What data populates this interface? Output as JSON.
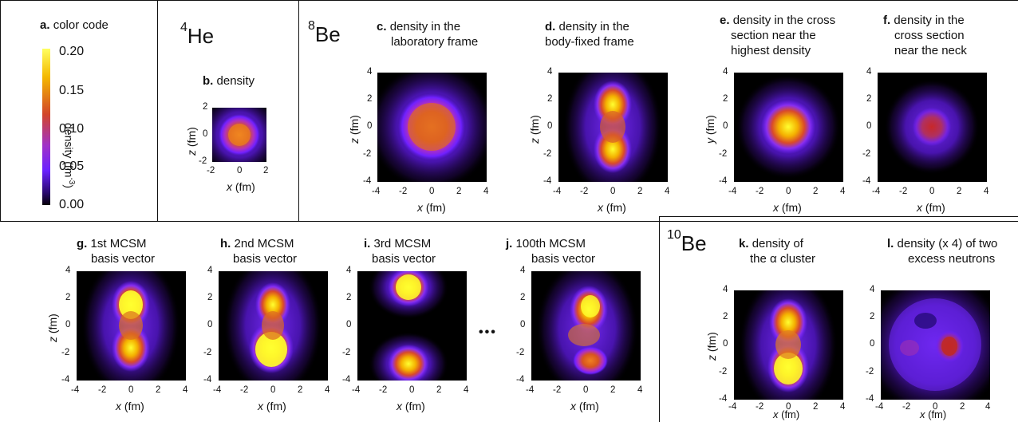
{
  "colors": {
    "low": "#000000",
    "mid1": "#6a1fff",
    "mid2": "#cf3a3a",
    "high": "#f7d400",
    "highest": "#ffff3a"
  },
  "nuclei": {
    "he4_mass": "4",
    "he4_sym": "He",
    "be8_mass": "8",
    "be8_sym": "Be",
    "be10_mass": "10",
    "be10_sym": "Be"
  },
  "colorbar": {
    "letter": "a.",
    "title": "color code",
    "ticks": [
      "0.20",
      "0.15",
      "0.10",
      "0.05",
      "0.00"
    ],
    "label": "density (fm",
    "label_exp": "-3",
    "label_close": ")"
  },
  "axes": {
    "x_label": "x",
    "y_label": "y",
    "z_label": "z",
    "unit": " (fm)",
    "ticks4": [
      "4",
      "2",
      "0",
      "-2",
      "-4"
    ],
    "ticks4x": [
      "-4",
      "-2",
      "0",
      "2",
      "4"
    ],
    "ticks2": [
      "2",
      "0",
      "-2"
    ],
    "ticks2x": [
      "-2",
      "0",
      "2"
    ]
  },
  "panels": {
    "b": {
      "letter": "b.",
      "line1": "density",
      "line2": ""
    },
    "c": {
      "letter": "c.",
      "line1": "density in the",
      "line2": "laboratory frame"
    },
    "d": {
      "letter": "d.",
      "line1": "density in the",
      "line2": "body-fixed frame"
    },
    "e": {
      "letter": "e.",
      "line1": "density in the cross",
      "line2": "section near the",
      "line3": "highest density"
    },
    "f": {
      "letter": "f.",
      "line1": "density in the",
      "line2": "cross section",
      "line3": "near the neck"
    },
    "g": {
      "letter": "g.",
      "line1": "1st MCSM",
      "line2": "basis vector"
    },
    "h": {
      "letter": "h.",
      "line1": "2nd MCSM",
      "line2": "basis vector"
    },
    "i": {
      "letter": "i.",
      "line1": "3rd MCSM",
      "line2": "basis vector"
    },
    "j": {
      "letter": "j.",
      "line1": "100th MCSM",
      "line2": "basis vector"
    },
    "k": {
      "letter": "k.",
      "line1": "density of",
      "line2": "the α cluster"
    },
    "l": {
      "letter": "l.",
      "line1": "density (x 4) of two",
      "line2": "excess neutrons"
    }
  },
  "ellipsis": "•••"
}
